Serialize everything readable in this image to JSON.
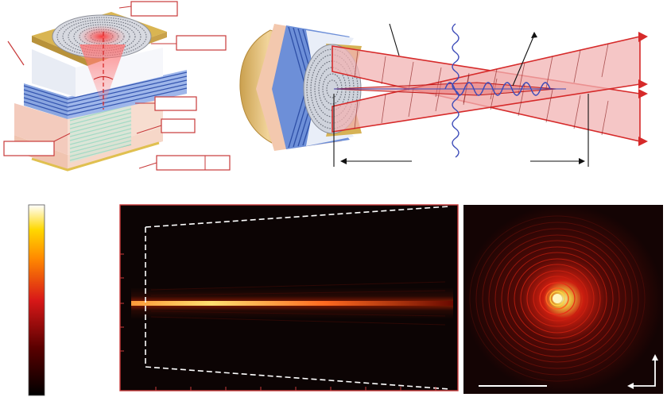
{
  "figure": {
    "panel_a": {
      "label_boxes": [
        "",
        "",
        "",
        "",
        "",
        ""
      ]
    },
    "panel_b": {},
    "panel_c": {
      "colorbar_labels": []
    },
    "panel_d": {},
    "panel_e": {}
  },
  "colors": {
    "frame": "#c83a3a",
    "beam": "#d62a2a",
    "beam_fill": "#f2b3b3",
    "wave": "#3b4ab8",
    "gold": "#d8b45a",
    "dbr_blue": "#5a78c8",
    "green_layer": "#8ed3b8"
  }
}
